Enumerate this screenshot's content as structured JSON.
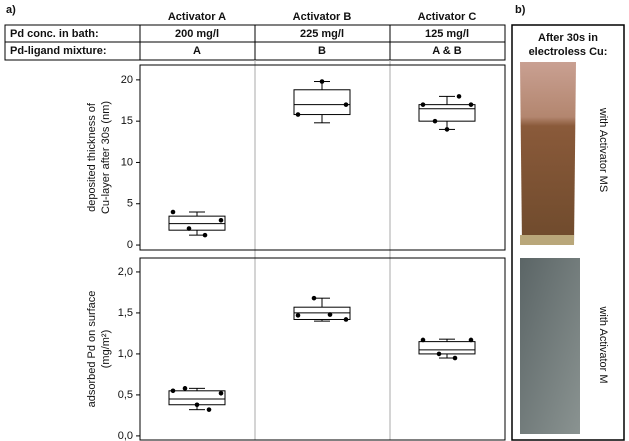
{
  "panel_a": "a)",
  "panel_b": "b)",
  "table": {
    "columns": [
      "Activator A",
      "Activator B",
      "Activator C"
    ],
    "rows": [
      [
        "Pd conc. in bath:",
        "200 mg/l",
        "225 mg/l",
        "125 mg/l"
      ],
      [
        "Pd-ligand mixture:",
        "A",
        "B",
        "A & B"
      ]
    ]
  },
  "photos": {
    "title": [
      "After 30s in",
      "electroless Cu:"
    ],
    "labels": [
      "with Activator MS",
      "with Activator M"
    ]
  },
  "chart_data": [
    {
      "type": "boxplot",
      "ylabel": [
        "deposited thickness of",
        "Cu-layer after 30s (nm)"
      ],
      "ylim": [
        -0.6,
        21.8
      ],
      "yticks": [
        0,
        5,
        10,
        15,
        20
      ],
      "boxes": [
        {
          "whisker_low": 1.2,
          "q1": 1.8,
          "median": 2.6,
          "q3": 3.5,
          "whisker_high": 4.0,
          "points": [
            4.0,
            2.0,
            1.2,
            3.0
          ]
        },
        {
          "whisker_low": 14.8,
          "q1": 15.8,
          "median": 17.0,
          "q3": 18.8,
          "whisker_high": 19.8,
          "points": [
            15.8,
            19.8,
            17.0
          ]
        },
        {
          "whisker_low": 14.0,
          "q1": 15.0,
          "median": 16.5,
          "q3": 17.0,
          "whisker_high": 18.0,
          "points": [
            17.0,
            15.0,
            14.0,
            18.0,
            17.0
          ]
        }
      ]
    },
    {
      "type": "boxplot",
      "ylabel": [
        "adsorbed Pd on surface",
        "(mg/m²)"
      ],
      "ylim": [
        -0.05,
        2.17
      ],
      "yticks": [
        {
          "value": 2.0,
          "label": "2,0"
        },
        {
          "value": 1.5,
          "label": "1,5"
        },
        {
          "value": 1.0,
          "label": "1,0"
        },
        {
          "value": 0.5,
          "label": "0,5"
        },
        {
          "value": 0.0,
          "label": "0,0"
        }
      ],
      "boxes": [
        {
          "whisker_low": 0.32,
          "q1": 0.38,
          "median": 0.45,
          "q3": 0.55,
          "whisker_high": 0.58,
          "points": [
            0.55,
            0.58,
            0.38,
            0.32,
            0.52
          ]
        },
        {
          "whisker_low": 1.4,
          "q1": 1.42,
          "median": 1.5,
          "q3": 1.57,
          "whisker_high": 1.68,
          "points": [
            1.47,
            1.68,
            1.48,
            1.42
          ]
        },
        {
          "whisker_low": 0.95,
          "q1": 1.0,
          "median": 1.05,
          "q3": 1.15,
          "whisker_high": 1.18,
          "points": [
            1.17,
            1.0,
            0.95,
            1.17
          ]
        }
      ]
    }
  ]
}
